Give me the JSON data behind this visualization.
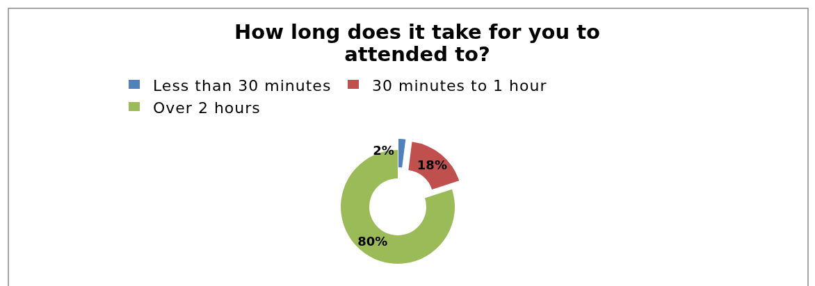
{
  "chart_data": {
    "type": "donut",
    "title": "How long does it take for you to attended to?",
    "categories": [
      "Less than 30 minutes",
      "30 minutes to 1 hour",
      "Over 2 hours"
    ],
    "values": [
      2,
      18,
      80
    ],
    "colors": [
      "#4f81bd",
      "#c0504d",
      "#9bbb59"
    ],
    "value_labels": [
      "2%",
      "18%",
      "80%"
    ],
    "legend": "top"
  }
}
